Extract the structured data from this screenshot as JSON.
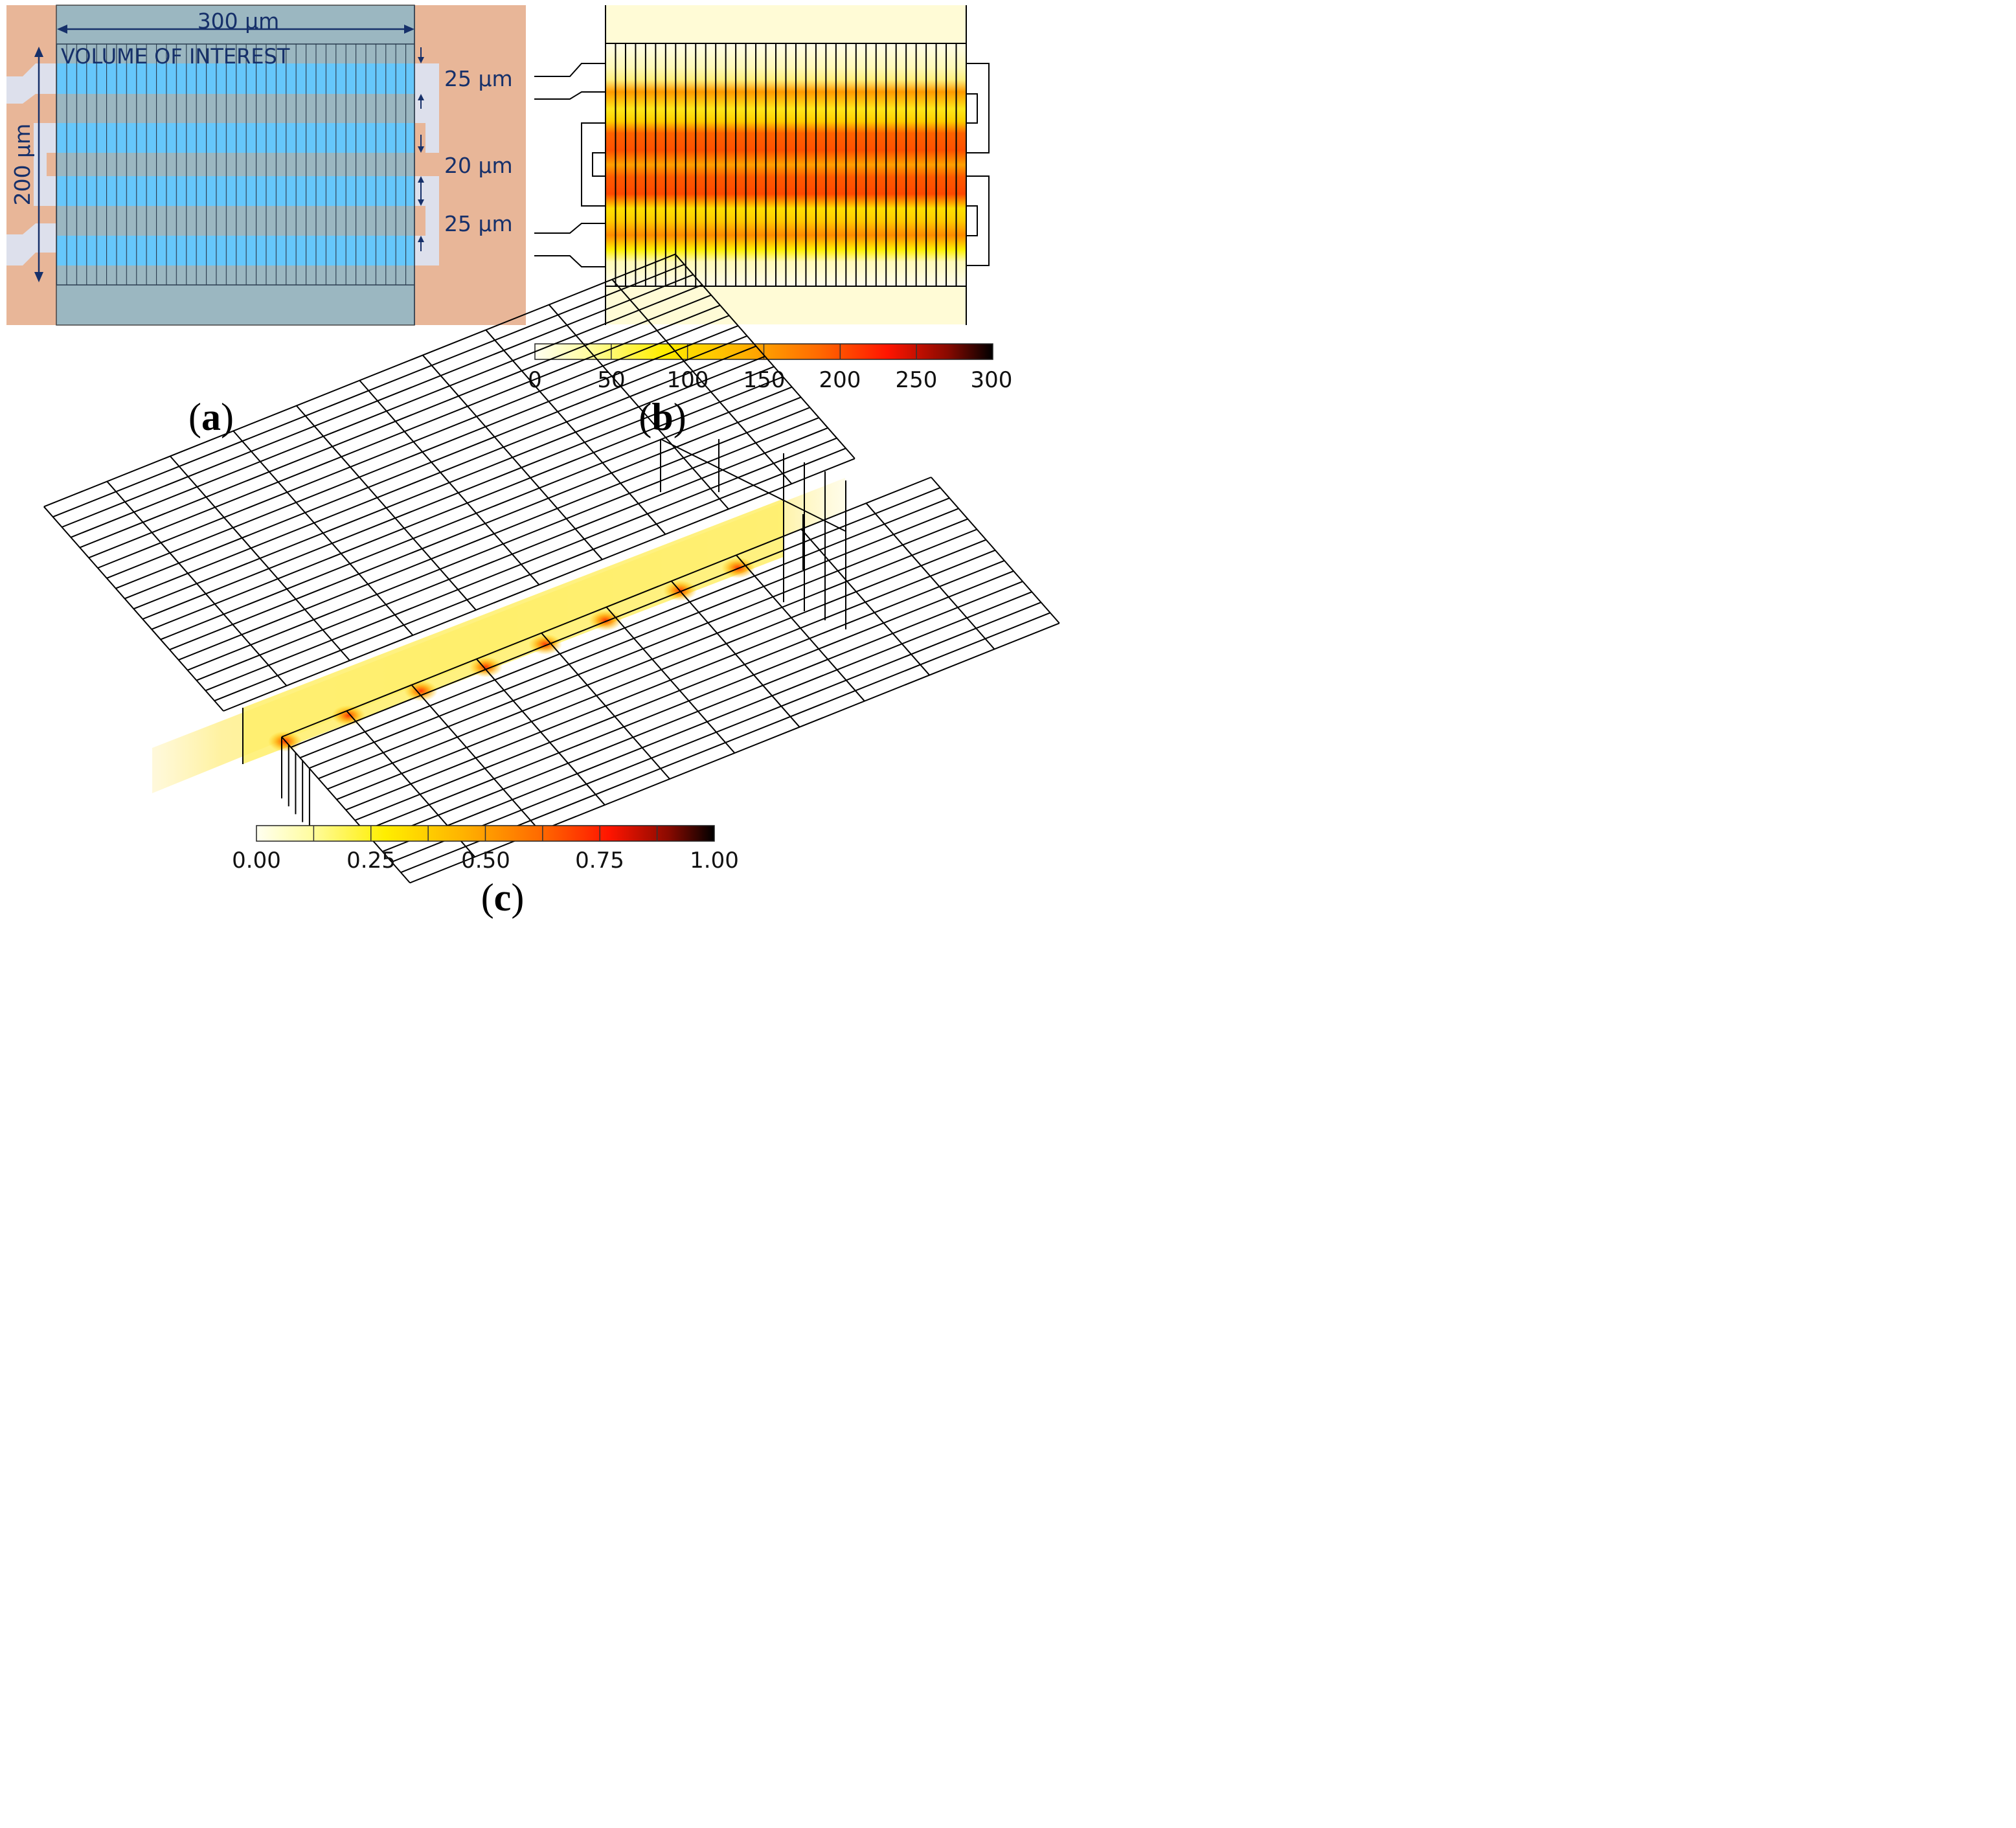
{
  "panel_a": {
    "dim_width": "300 µm",
    "dim_height": "200 µm",
    "title": "VOLUME OF INTEREST",
    "dim_top": "25 µm",
    "dim_middle": "20 µm",
    "dim_bottom": "25 µm"
  },
  "panel_b": {
    "colorbar_ticks": [
      "0",
      "50",
      "100",
      "150",
      "200",
      "250",
      "300"
    ]
  },
  "panel_c": {
    "colorbar_ticks": [
      "0.00",
      "0.25",
      "0.50",
      "0.75",
      "1.00"
    ]
  },
  "captions": {
    "a": {
      "open": "(",
      "letter": "a",
      "close": ")"
    },
    "b": {
      "open": "(",
      "letter": "b",
      "close": ")"
    },
    "c": {
      "open": "(",
      "letter": "c",
      "close": ")"
    }
  },
  "colors": {
    "copper": "#e8b698",
    "channel_blue": "#66c7fb",
    "grey_band": "#9bb7c1",
    "electrode_grey": "#dde0ec",
    "dim_navy": "#16306a"
  }
}
